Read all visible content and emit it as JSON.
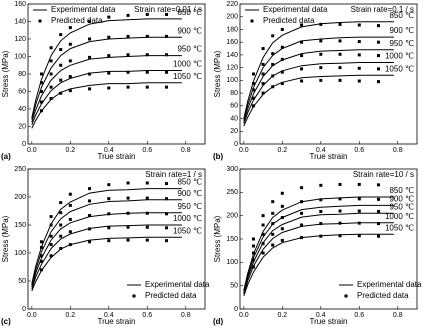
{
  "chart_data": [
    {
      "type": "line",
      "panel_label": "(a)",
      "annotation": "Strain rate=0.01 / s",
      "xlabel": "True strain",
      "ylabel": "Stress (MPa)",
      "legend": [
        "Experimental data",
        "Predicted data"
      ],
      "legend_position": "upper left",
      "color": "#000000",
      "xlim": [
        -0.02,
        0.9
      ],
      "xticks": [
        {
          "value": 0,
          "label": "0.0"
        },
        0.2,
        0.4,
        0.6,
        0.8
      ],
      "ylim": [
        0,
        160
      ],
      "yticks": [
        0,
        20,
        40,
        60,
        80,
        100,
        120,
        140,
        160
      ],
      "temperatures": [
        "850 ℃",
        "900 ℃",
        "950 ℃",
        "1000 ℃",
        "1050 ℃"
      ],
      "x_experimental": [
        0,
        0.02,
        0.05,
        0.1,
        0.15,
        0.2,
        0.3,
        0.4,
        0.5,
        0.6,
        0.7,
        0.78
      ],
      "x_predicted": [
        0.05,
        0.1,
        0.15,
        0.2,
        0.3,
        0.4,
        0.5,
        0.6,
        0.7
      ],
      "experimental": [
        {
          "values": [
            30,
            50,
            74,
            101,
            118,
            127,
            137,
            141,
            142,
            143,
            143,
            143
          ]
        },
        {
          "values": [
            28,
            45,
            65,
            87,
            101,
            109,
            117,
            120,
            121,
            122,
            122,
            122
          ]
        },
        {
          "values": [
            25,
            39,
            55,
            73,
            84,
            90,
            97,
            99,
            100,
            101,
            101,
            101
          ]
        },
        {
          "values": [
            22,
            33,
            46,
            61,
            70,
            75,
            81,
            83,
            83,
            84,
            84,
            84
          ]
        },
        {
          "values": [
            18,
            27,
            38,
            51,
            59,
            63,
            67,
            69,
            69,
            70,
            70,
            70
          ]
        }
      ],
      "predicted": [
        {
          "values": [
            80,
            110,
            125,
            133,
            140,
            145,
            147,
            148,
            148
          ]
        },
        {
          "values": [
            70,
            95,
            108,
            114,
            120,
            122,
            123,
            123,
            123
          ]
        },
        {
          "values": [
            60,
            80,
            90,
            95,
            99,
            101,
            102,
            102,
            102
          ]
        },
        {
          "values": [
            48,
            65,
            73,
            77,
            80,
            81,
            82,
            82,
            82
          ]
        },
        {
          "values": [
            38,
            52,
            58,
            61,
            63,
            64,
            65,
            65,
            65
          ]
        }
      ]
    },
    {
      "type": "line",
      "panel_label": "(b)",
      "annotation": "Strain rate=0.1 / s",
      "xlabel": "True strain",
      "ylabel": "Stress (MPa)",
      "legend": [
        "Experimental data",
        "Predicted data"
      ],
      "legend_position": "upper left",
      "color": "#000000",
      "xlim": [
        -0.02,
        0.9
      ],
      "xticks": [
        {
          "value": 0,
          "label": "0.0"
        },
        0.2,
        0.4,
        0.6,
        0.8
      ],
      "ylim": [
        0,
        220
      ],
      "yticks": [
        0,
        20,
        40,
        60,
        80,
        100,
        120,
        140,
        160,
        180,
        200,
        220
      ],
      "temperatures": [
        "850 ℃",
        "900 ℃",
        "950 ℃",
        "1000 ℃",
        "1050 ℃"
      ],
      "x_experimental": [
        0,
        0.02,
        0.05,
        0.1,
        0.15,
        0.2,
        0.3,
        0.4,
        0.5,
        0.6,
        0.7,
        0.78
      ],
      "x_predicted": [
        0.05,
        0.1,
        0.15,
        0.2,
        0.3,
        0.4,
        0.5,
        0.6,
        0.7
      ],
      "experimental": [
        {
          "values": [
            40,
            67,
            99,
            136,
            159,
            171,
            184,
            189,
            191,
            192,
            192,
            192
          ]
        },
        {
          "values": [
            38,
            61,
            89,
            120,
            139,
            150,
            162,
            165,
            167,
            168,
            168,
            168
          ]
        },
        {
          "values": [
            35,
            55,
            79,
            106,
            123,
            132,
            142,
            146,
            147,
            148,
            148,
            148
          ]
        },
        {
          "values": [
            32,
            49,
            69,
            92,
            107,
            115,
            123,
            126,
            127,
            128,
            128,
            128
          ]
        },
        {
          "values": [
            28,
            42,
            59,
            78,
            90,
            97,
            104,
            106,
            107,
            108,
            108,
            108
          ]
        }
      ],
      "predicted": [
        {
          "values": [
            110,
            150,
            170,
            180,
            187,
            188,
            188,
            187,
            186
          ]
        },
        {
          "values": [
            95,
            125,
            142,
            152,
            160,
            162,
            162,
            161,
            160
          ]
        },
        {
          "values": [
            85,
            110,
            125,
            133,
            139,
            141,
            141,
            140,
            139
          ]
        },
        {
          "values": [
            72,
            95,
            107,
            113,
            118,
            120,
            120,
            119,
            118
          ]
        },
        {
          "values": [
            60,
            80,
            90,
            95,
            99,
            100,
            100,
            99,
            98
          ]
        }
      ]
    },
    {
      "type": "line",
      "panel_label": "(c)",
      "annotation": "Strain rate=1 / s",
      "xlabel": "True strain",
      "ylabel": "Stress (MPa)",
      "legend": [
        "Experimental data",
        "Predicted data"
      ],
      "legend_position": "lower right",
      "color": "#000000",
      "xlim": [
        -0.02,
        0.9
      ],
      "xticks": [
        {
          "value": 0,
          "label": "0.0"
        },
        0.2,
        0.4,
        0.6,
        0.8
      ],
      "ylim": [
        0,
        250
      ],
      "yticks": [
        0,
        50,
        100,
        150,
        200,
        250
      ],
      "temperatures": [
        "850 ℃",
        "900 ℃",
        "950 ℃",
        "1000 ℃",
        "1050 ℃"
      ],
      "x_experimental": [
        0,
        0.02,
        0.05,
        0.1,
        0.15,
        0.2,
        0.3,
        0.4,
        0.5,
        0.6,
        0.7,
        0.78
      ],
      "x_predicted": [
        0.05,
        0.1,
        0.15,
        0.2,
        0.3,
        0.4,
        0.5,
        0.6,
        0.7
      ],
      "experimental": [
        {
          "values": [
            45,
            76,
            111,
            152,
            178,
            191,
            207,
            212,
            213,
            215,
            215,
            215
          ]
        },
        {
          "values": [
            42,
            70,
            102,
            138,
            161,
            174,
            187,
            192,
            193,
            195,
            195,
            195
          ]
        },
        {
          "values": [
            40,
            64,
            91,
            123,
            143,
            154,
            165,
            169,
            171,
            172,
            172,
            172
          ]
        },
        {
          "values": [
            36,
            57,
            80,
            108,
            125,
            134,
            144,
            148,
            149,
            150,
            150,
            150
          ]
        },
        {
          "values": [
            32,
            49,
            69,
            92,
            107,
            115,
            123,
            126,
            127,
            128,
            128,
            128
          ]
        }
      ],
      "predicted": [
        {
          "values": [
            120,
            165,
            190,
            205,
            215,
            222,
            225,
            225,
            224
          ]
        },
        {
          "values": [
            110,
            150,
            172,
            185,
            193,
            197,
            198,
            198,
            197
          ]
        },
        {
          "values": [
            95,
            130,
            150,
            160,
            167,
            170,
            171,
            171,
            170
          ]
        },
        {
          "values": [
            85,
            115,
            130,
            138,
            143,
            145,
            146,
            146,
            145
          ]
        },
        {
          "values": [
            70,
            95,
            108,
            115,
            120,
            122,
            123,
            123,
            122
          ]
        }
      ]
    },
    {
      "type": "line",
      "panel_label": "(d)",
      "annotation": "Strain rate=10 / s",
      "xlabel": "True strain",
      "ylabel": "Stress (MPa)",
      "legend": [
        "Experimental data",
        "Predicted data"
      ],
      "legend_position": "lower right",
      "color": "#000000",
      "xlim": [
        -0.02,
        0.9
      ],
      "xticks": [
        {
          "value": 0,
          "label": "0.0"
        },
        0.2,
        0.4,
        0.6,
        0.8
      ],
      "ylim": [
        0,
        300
      ],
      "yticks": [
        0,
        50,
        100,
        150,
        200,
        250,
        300
      ],
      "temperatures": [
        "850 ℃",
        "900 ℃",
        "950 ℃",
        "1000 ℃",
        "1050 ℃"
      ],
      "x_experimental": [
        0,
        0.02,
        0.05,
        0.1,
        0.15,
        0.2,
        0.3,
        0.4,
        0.5,
        0.6,
        0.7,
        0.78
      ],
      "x_predicted": [
        0.05,
        0.1,
        0.15,
        0.2,
        0.3,
        0.4,
        0.5,
        0.6,
        0.7
      ],
      "experimental": [
        {
          "values": [
            40,
            76,
            118,
            166,
            196,
            212,
            230,
            236,
            238,
            240,
            240,
            240
          ]
        },
        {
          "values": [
            38,
            71,
            110,
            154,
            182,
            196,
            213,
            218,
            220,
            222,
            222,
            222
          ]
        },
        {
          "values": [
            35,
            66,
            101,
            142,
            168,
            181,
            197,
            202,
            203,
            205,
            205,
            205
          ]
        },
        {
          "values": [
            32,
            60,
            92,
            128,
            151,
            164,
            177,
            182,
            183,
            185,
            185,
            185
          ]
        },
        {
          "values": [
            28,
            52,
            79,
            111,
            131,
            142,
            153,
            157,
            159,
            160,
            160,
            160
          ]
        }
      ],
      "predicted": [
        {
          "values": [
            150,
            200,
            230,
            248,
            260,
            265,
            267,
            267,
            266
          ]
        },
        {
          "values": [
            135,
            180,
            205,
            220,
            230,
            234,
            236,
            236,
            235
          ]
        },
        {
          "values": [
            120,
            160,
            183,
            196,
            205,
            209,
            210,
            210,
            209
          ]
        },
        {
          "values": [
            105,
            140,
            160,
            172,
            180,
            183,
            184,
            184,
            183
          ]
        },
        {
          "values": [
            90,
            120,
            137,
            147,
            153,
            156,
            157,
            157,
            156
          ]
        }
      ]
    }
  ]
}
